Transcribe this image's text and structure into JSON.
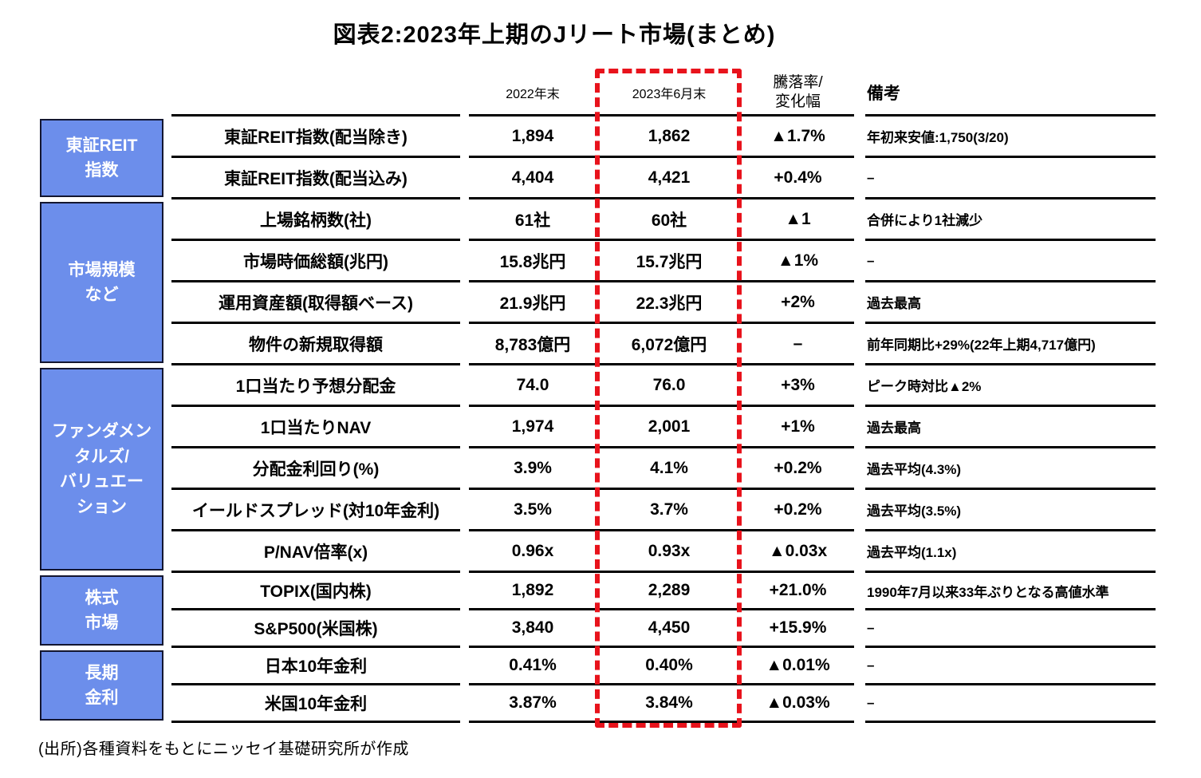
{
  "title": "図表2:2023年上期のJリート市場(まとめ)",
  "header": {
    "col_2022": "2022年末",
    "col_2023": "2023年6月末",
    "col_change": "騰落率/\n変化幅",
    "col_remarks": "備考"
  },
  "colors": {
    "highlight_dash": "#e8131c",
    "group_label_bg": "#6c8eeb",
    "group_label_text": "#ffffff",
    "rule_line": "#000000"
  },
  "groups": [
    {
      "label": "東証REIT\n指数",
      "rows": [
        {
          "item": "東証REIT指数(配当除き)",
          "v2022": "1,894",
          "v2023": "1,862",
          "change": "▲1.7%",
          "remark": "年初来安値:1,750(3/20)"
        },
        {
          "item": "東証REIT指数(配当込み)",
          "v2022": "4,404",
          "v2023": "4,421",
          "change": "+0.4%",
          "remark": "–"
        }
      ]
    },
    {
      "label": "市場規模\nなど",
      "rows": [
        {
          "item": "上場銘柄数(社)",
          "v2022": "61社",
          "v2023": "60社",
          "change": "▲1",
          "remark": "合併により1社減少"
        },
        {
          "item": "市場時価総額(兆円)",
          "v2022": "15.8兆円",
          "v2023": "15.7兆円",
          "change": "▲1%",
          "remark": "–"
        },
        {
          "item": "運用資産額(取得額ベース)",
          "v2022": "21.9兆円",
          "v2023": "22.3兆円",
          "change": "+2%",
          "remark": "過去最高"
        },
        {
          "item": "物件の新規取得額",
          "v2022": "8,783億円",
          "v2023": "6,072億円",
          "change": "–",
          "remark": "前年同期比+29%(22年上期4,717億円)"
        }
      ]
    },
    {
      "label": "ファンダメン\nタルズ/\nバリュエー\nション",
      "rows": [
        {
          "item": "1口当たり予想分配金",
          "v2022": "74.0",
          "v2023": "76.0",
          "change": "+3%",
          "remark": "ピーク時対比▲2%"
        },
        {
          "item": "1口当たりNAV",
          "v2022": "1,974",
          "v2023": "2,001",
          "change": "+1%",
          "remark": "過去最高"
        },
        {
          "item": "分配金利回り(%)",
          "v2022": "3.9%",
          "v2023": "4.1%",
          "change": "+0.2%",
          "remark": "過去平均(4.3%)"
        },
        {
          "item": "イールドスプレッド(対10年金利)",
          "v2022": "3.5%",
          "v2023": "3.7%",
          "change": "+0.2%",
          "remark": "過去平均(3.5%)"
        },
        {
          "item": "P/NAV倍率(x)",
          "v2022": "0.96x",
          "v2023": "0.93x",
          "change": "▲0.03x",
          "remark": "過去平均(1.1x)"
        }
      ]
    },
    {
      "label": "株式\n市場",
      "rows": [
        {
          "item": "TOPIX(国内株)",
          "v2022": "1,892",
          "v2023": "2,289",
          "change": "+21.0%",
          "remark": "1990年7月以来33年ぶりとなる高値水準"
        },
        {
          "item": "S&P500(米国株)",
          "v2022": "3,840",
          "v2023": "4,450",
          "change": "+15.9%",
          "remark": "–"
        }
      ]
    },
    {
      "label": "長期\n金利",
      "rows": [
        {
          "item": "日本10年金利",
          "v2022": "0.41%",
          "v2023": "0.40%",
          "change": "▲0.01%",
          "remark": "–"
        },
        {
          "item": "米国10年金利",
          "v2022": "3.87%",
          "v2023": "3.84%",
          "change": "▲0.03%",
          "remark": "–"
        }
      ]
    }
  ],
  "source": "(出所)各種資料をもとにニッセイ基礎研究所が作成"
}
